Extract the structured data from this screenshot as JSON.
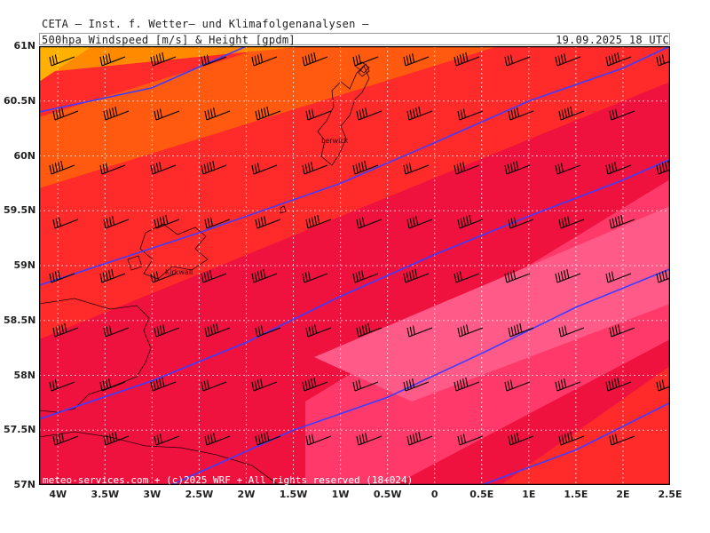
{
  "header": {
    "title": "CETA — Inst. f. Wetter— und Klimafolgenanalysen —",
    "field": "500hpa Windspeed [m/s] & Height [gpdm]",
    "valid_time": "19.09.2025  18 UTC"
  },
  "credit": "meteo-services.com + (c)2025 WRF + All rights reserved (18+024)",
  "places": {
    "lerwick": "Lerwick",
    "kirkwall": "Kirkwall"
  },
  "colors": {
    "band_orange_light": "#ffb000",
    "band_orange": "#ff8a00",
    "band_orange_red": "#ff5a10",
    "band_red": "#ff2a2a",
    "band_crimson": "#f0123e",
    "band_pink": "#ff3a6a",
    "band_light_pink": "#ff5a88",
    "height_contour": "#3d3dff",
    "gridline": "#ffffff",
    "coastline": "#2a0008"
  },
  "chart_data": {
    "type": "map",
    "map_type": "wind barbs with filled wind speed bands and height contours",
    "xlabel": "",
    "ylabel": "",
    "lon_range": [
      -4.2,
      2.5
    ],
    "lat_range": [
      57.0,
      61.0
    ],
    "x_ticks": [
      "4W",
      "3.5W",
      "3W",
      "2.5W",
      "2W",
      "1.5W",
      "1W",
      "0.5W",
      "0",
      "0.5E",
      "1E",
      "1.5E",
      "2E",
      "2.5E"
    ],
    "y_ticks": [
      "61N",
      "60.5N",
      "60N",
      "59.5N",
      "59N",
      "58.5N",
      "58N",
      "57.5N",
      "57N"
    ],
    "grid": true,
    "height_contours": [
      {
        "points": [
          [
            -4.2,
            60.4
          ],
          [
            -3.0,
            60.62
          ],
          [
            -2.0,
            61.0
          ]
        ]
      },
      {
        "points": [
          [
            -4.2,
            58.82
          ],
          [
            -2.5,
            59.3
          ],
          [
            -1.0,
            59.75
          ],
          [
            0.0,
            60.12
          ],
          [
            1.0,
            60.5
          ],
          [
            2.0,
            60.8
          ],
          [
            2.5,
            61.0
          ]
        ]
      },
      {
        "points": [
          [
            -4.2,
            57.6
          ],
          [
            -3.0,
            57.95
          ],
          [
            -2.0,
            58.3
          ],
          [
            -1.0,
            58.72
          ],
          [
            0.0,
            59.1
          ],
          [
            1.0,
            59.45
          ],
          [
            2.0,
            59.78
          ],
          [
            2.5,
            59.97
          ]
        ]
      },
      {
        "points": [
          [
            -2.8,
            57.0
          ],
          [
            -1.5,
            57.5
          ],
          [
            -0.5,
            57.8
          ],
          [
            0.5,
            58.2
          ],
          [
            1.5,
            58.62
          ],
          [
            2.5,
            58.97
          ]
        ]
      },
      {
        "points": [
          [
            0.5,
            57.0
          ],
          [
            1.5,
            57.32
          ],
          [
            2.5,
            57.75
          ]
        ]
      }
    ],
    "wind_barbs": {
      "lon_step": 0.33,
      "lat_step": 0.33,
      "direction_deg": 240,
      "speed_range_ms": [
        35,
        55
      ]
    }
  }
}
